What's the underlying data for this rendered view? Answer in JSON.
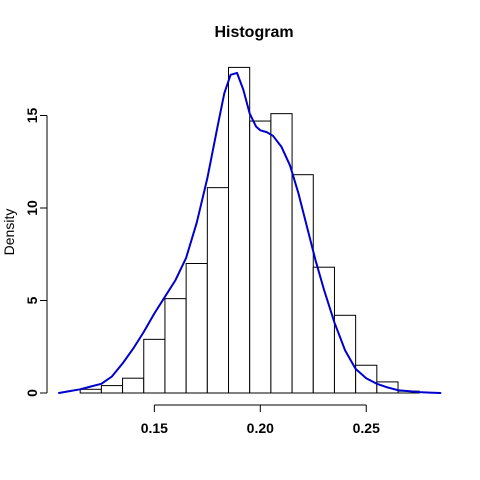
{
  "chart_data": {
    "type": "bar",
    "title": "Histogram",
    "xlabel": "",
    "ylabel": "Density",
    "xlim": [
      0.105,
      0.29
    ],
    "ylim": [
      0,
      18
    ],
    "x_ticks": [
      0.15,
      0.2,
      0.25
    ],
    "x_tick_labels": [
      "0.15",
      "0.20",
      "0.25"
    ],
    "y_ticks": [
      0,
      5,
      10,
      15
    ],
    "y_tick_labels": [
      "0",
      "5",
      "10",
      "15"
    ],
    "grid": false,
    "legend": "none",
    "bins": [
      {
        "start": 0.115,
        "end": 0.125,
        "density": 0.2
      },
      {
        "start": 0.125,
        "end": 0.135,
        "density": 0.4
      },
      {
        "start": 0.135,
        "end": 0.145,
        "density": 0.8
      },
      {
        "start": 0.145,
        "end": 0.155,
        "density": 2.9
      },
      {
        "start": 0.155,
        "end": 0.165,
        "density": 5.1
      },
      {
        "start": 0.165,
        "end": 0.175,
        "density": 7.0
      },
      {
        "start": 0.175,
        "end": 0.185,
        "density": 11.1
      },
      {
        "start": 0.185,
        "end": 0.195,
        "density": 17.6
      },
      {
        "start": 0.195,
        "end": 0.205,
        "density": 14.7
      },
      {
        "start": 0.205,
        "end": 0.215,
        "density": 15.1
      },
      {
        "start": 0.215,
        "end": 0.225,
        "density": 11.8
      },
      {
        "start": 0.225,
        "end": 0.235,
        "density": 6.8
      },
      {
        "start": 0.235,
        "end": 0.245,
        "density": 4.2
      },
      {
        "start": 0.245,
        "end": 0.255,
        "density": 1.5
      },
      {
        "start": 0.255,
        "end": 0.265,
        "density": 0.6
      },
      {
        "start": 0.265,
        "end": 0.275,
        "density": 0.1
      }
    ],
    "density_curve": {
      "color": "#0000cc",
      "x": [
        0.105,
        0.11,
        0.115,
        0.12,
        0.125,
        0.13,
        0.135,
        0.14,
        0.145,
        0.15,
        0.155,
        0.16,
        0.165,
        0.17,
        0.175,
        0.18,
        0.183,
        0.186,
        0.189,
        0.192,
        0.195,
        0.198,
        0.2,
        0.203,
        0.206,
        0.21,
        0.214,
        0.218,
        0.222,
        0.226,
        0.23,
        0.235,
        0.24,
        0.245,
        0.25,
        0.255,
        0.26,
        0.265,
        0.27,
        0.275,
        0.28,
        0.285
      ],
      "y": [
        0.0,
        0.1,
        0.2,
        0.35,
        0.5,
        0.9,
        1.6,
        2.4,
        3.3,
        4.3,
        5.2,
        6.1,
        7.3,
        9.2,
        11.6,
        14.5,
        16.2,
        17.2,
        17.3,
        16.4,
        15.1,
        14.4,
        14.2,
        14.1,
        13.9,
        13.3,
        12.3,
        10.8,
        9.0,
        7.2,
        5.6,
        3.8,
        2.3,
        1.3,
        0.8,
        0.5,
        0.3,
        0.15,
        0.1,
        0.05,
        0.02,
        0.0
      ]
    }
  },
  "colors": {
    "bar_fill": "#ffffff",
    "bar_stroke": "#000000",
    "axis": "#000000"
  }
}
